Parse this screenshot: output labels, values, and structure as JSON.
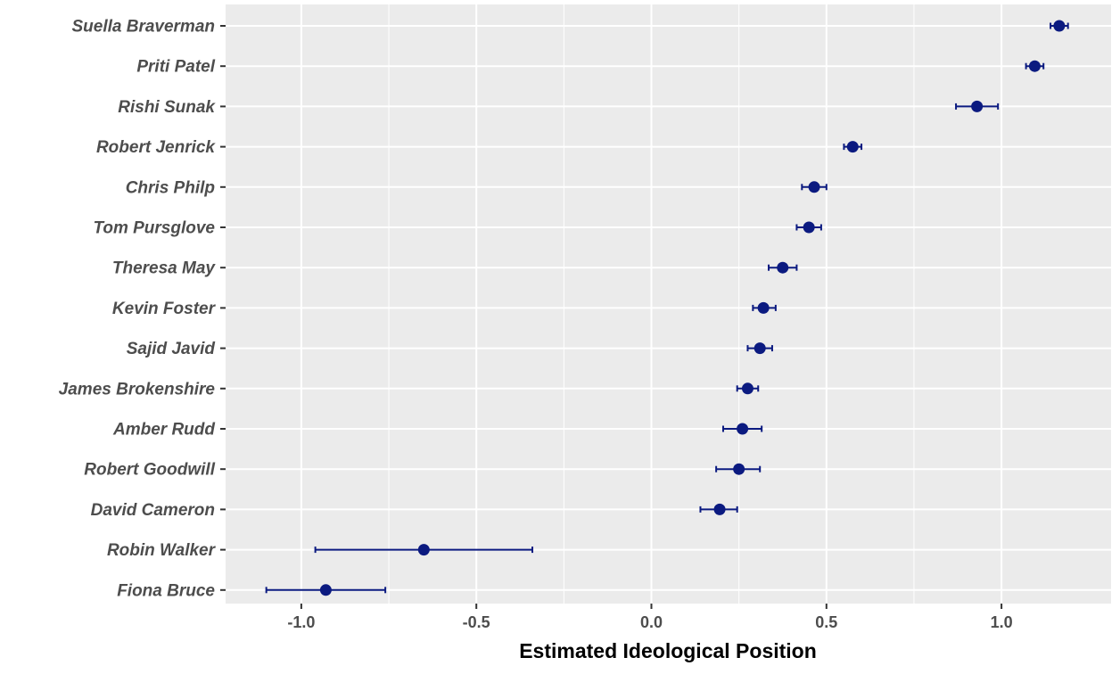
{
  "chart_data": {
    "type": "scatter",
    "title": "",
    "xlabel": "Estimated Ideological Position",
    "ylabel": "",
    "xlim": [
      -1.2,
      1.25
    ],
    "x_ticks": [
      -1.0,
      -0.5,
      0.0,
      0.5,
      1.0
    ],
    "x_tick_labels": [
      "-1.0",
      "-0.5",
      "0.0",
      "0.5",
      "1.0"
    ],
    "grid": true,
    "legend": "none",
    "colors": {
      "point": "#0b1a80",
      "panel": "#ebebeb",
      "grid": "#ffffff"
    },
    "points": [
      {
        "label": "Suella Braverman",
        "x": 1.165,
        "lo": 1.14,
        "hi": 1.19
      },
      {
        "label": "Priti Patel",
        "x": 1.095,
        "lo": 1.07,
        "hi": 1.12
      },
      {
        "label": "Rishi Sunak",
        "x": 0.93,
        "lo": 0.87,
        "hi": 0.99
      },
      {
        "label": "Robert Jenrick",
        "x": 0.575,
        "lo": 0.55,
        "hi": 0.6
      },
      {
        "label": "Chris Philp",
        "x": 0.465,
        "lo": 0.43,
        "hi": 0.5
      },
      {
        "label": "Tom Pursglove",
        "x": 0.45,
        "lo": 0.415,
        "hi": 0.485
      },
      {
        "label": "Theresa May",
        "x": 0.375,
        "lo": 0.335,
        "hi": 0.415
      },
      {
        "label": "Kevin Foster",
        "x": 0.32,
        "lo": 0.29,
        "hi": 0.355
      },
      {
        "label": "Sajid Javid",
        "x": 0.31,
        "lo": 0.275,
        "hi": 0.345
      },
      {
        "label": "James Brokenshire",
        "x": 0.275,
        "lo": 0.245,
        "hi": 0.305
      },
      {
        "label": "Amber Rudd",
        "x": 0.26,
        "lo": 0.205,
        "hi": 0.315
      },
      {
        "label": "Robert Goodwill",
        "x": 0.25,
        "lo": 0.185,
        "hi": 0.31
      },
      {
        "label": "David Cameron",
        "x": 0.195,
        "lo": 0.14,
        "hi": 0.245
      },
      {
        "label": "Robin Walker",
        "x": -0.65,
        "lo": -0.96,
        "hi": -0.34
      },
      {
        "label": "Fiona Bruce",
        "x": -0.93,
        "lo": -1.1,
        "hi": -0.76
      }
    ]
  }
}
